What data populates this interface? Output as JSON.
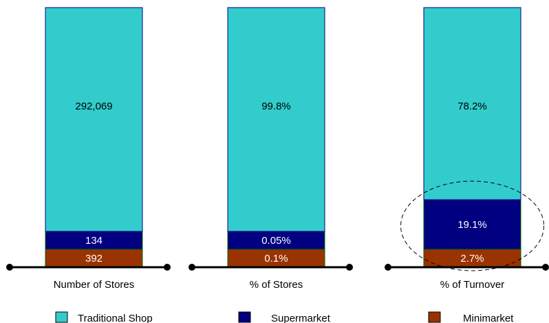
{
  "chart_data": {
    "type": "bar",
    "stacked": true,
    "categories": [
      "Number of Stores",
      "% of Stores",
      "% of Turnover"
    ],
    "series": [
      {
        "name": "Minimarket",
        "color": "#993300",
        "labels": [
          "392",
          "0.1%",
          "2.7%"
        ]
      },
      {
        "name": "Supermarket",
        "color": "#000080",
        "labels": [
          "134",
          "0.05%",
          "19.1%"
        ]
      },
      {
        "name": "Traditional Shop",
        "color": "#33CCCC",
        "labels": [
          "292,069",
          "99.8%",
          "78.2%"
        ]
      }
    ],
    "segment_shares": [
      [
        0.1,
        0.05,
        99.8
      ],
      [
        0.1,
        0.05,
        99.8
      ],
      [
        2.7,
        19.1,
        78.2
      ]
    ],
    "highlight": {
      "category": "% of Turnover",
      "shape": "dashed-ellipse"
    },
    "legend": {
      "placement": "bottom"
    }
  }
}
